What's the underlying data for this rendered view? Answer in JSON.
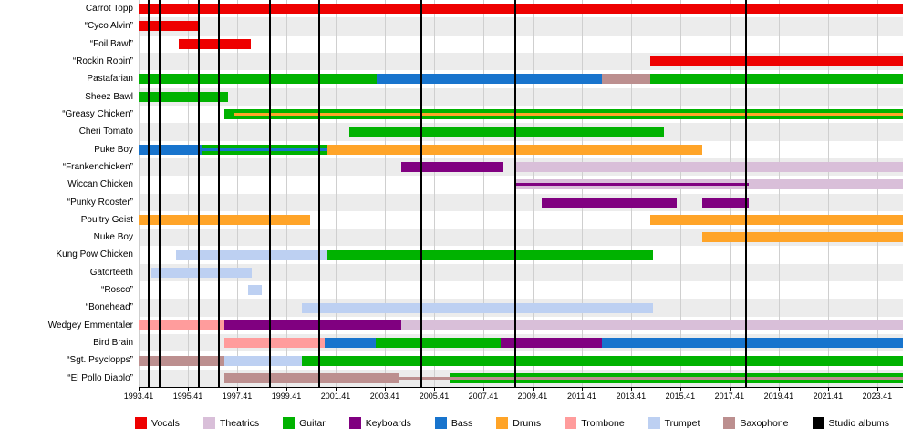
{
  "chart_data": {
    "type": "timeline",
    "title": "",
    "x_axis": {
      "domain": [
        1993.41,
        2024.45
      ],
      "ticks": [
        "1993.41",
        "1995.41",
        "1997.41",
        "1999.41",
        "2001.41",
        "2003.41",
        "2005.41",
        "2007.41",
        "2009.41",
        "2011.41",
        "2013.41",
        "2015.41",
        "2017.41",
        "2019.41",
        "2021.41",
        "2023.41"
      ]
    },
    "albums": {
      "label": "Studio albums",
      "years": [
        1993.82,
        1994.26,
        1995.85,
        1996.67,
        1998.74,
        2000.74,
        2004.89,
        2008.7,
        2018.07
      ]
    },
    "colors": {
      "vocals": "#EE0000",
      "theatrics": "#D9BFD9",
      "guitar": "#00B200",
      "keyboards": "#800080",
      "bass": "#1874CD",
      "drums": "#FFA428",
      "trombone": "#FF9C9C",
      "trumpet": "#BDD0F2",
      "saxophone": "#BC8F8F",
      "studio_albums": "#000000"
    },
    "legend": [
      {
        "label": "Vocals",
        "key": "vocals"
      },
      {
        "label": "Theatrics",
        "key": "theatrics"
      },
      {
        "label": "Guitar",
        "key": "guitar"
      },
      {
        "label": "Keyboards",
        "key": "keyboards"
      },
      {
        "label": "Bass",
        "key": "bass"
      },
      {
        "label": "Drums",
        "key": "drums"
      },
      {
        "label": "Trombone",
        "key": "trombone"
      },
      {
        "label": "Trumpet",
        "key": "trumpet"
      },
      {
        "label": "Saxophone",
        "key": "saxophone"
      },
      {
        "label": "Studio albums",
        "key": "studio_albums"
      }
    ],
    "members": [
      {
        "name": "Carrot Topp",
        "segments": [
          {
            "start": 1993.41,
            "end": 2024.45,
            "role": "vocals"
          }
        ]
      },
      {
        "name": "“Cyco Alvin”",
        "segments": [
          {
            "start": 1993.41,
            "end": 1995.85,
            "role": "vocals"
          }
        ]
      },
      {
        "name": "“Foil Bawl”",
        "segments": [
          {
            "start": 1995.04,
            "end": 1997.97,
            "role": "vocals"
          }
        ]
      },
      {
        "name": "“Rockin Robin”",
        "segments": [
          {
            "start": 2014.19,
            "end": 2024.45,
            "role": "vocals"
          }
        ]
      },
      {
        "name": "Pastafarian",
        "segments": [
          {
            "start": 1993.41,
            "end": 2003.08,
            "role": "guitar"
          },
          {
            "start": 2003.08,
            "end": 2012.22,
            "role": "bass"
          },
          {
            "start": 2012.22,
            "end": 2014.19,
            "role": "saxophone"
          },
          {
            "start": 2014.19,
            "end": 2024.45,
            "role": "guitar"
          }
        ]
      },
      {
        "name": "Sheez Bawl",
        "segments": [
          {
            "start": 1993.41,
            "end": 1997.04,
            "role": "guitar"
          }
        ]
      },
      {
        "name": "“Greasy Chicken”",
        "segments": [
          {
            "start": 1996.89,
            "end": 2024.45,
            "role": "guitar"
          },
          {
            "start": 1997.3,
            "end": 2024.45,
            "role": "drums",
            "thin": true
          }
        ]
      },
      {
        "name": "Cheri Tomato",
        "segments": [
          {
            "start": 2001.97,
            "end": 2014.74,
            "role": "guitar"
          }
        ]
      },
      {
        "name": "Puke Boy",
        "segments": [
          {
            "start": 1993.41,
            "end": 1996.0,
            "role": "bass"
          },
          {
            "start": 1996.0,
            "end": 2001.07,
            "role": "guitar"
          },
          {
            "start": 2001.07,
            "end": 2016.3,
            "role": "drums"
          },
          {
            "start": 1996.0,
            "end": 2001.07,
            "role": "bass",
            "thin": true
          }
        ]
      },
      {
        "name": "“Frankenchicken”",
        "segments": [
          {
            "start": 2004.08,
            "end": 2008.19,
            "role": "keyboards"
          },
          {
            "start": 2008.7,
            "end": 2024.45,
            "role": "theatrics"
          }
        ]
      },
      {
        "name": "Wiccan Chicken",
        "segments": [
          {
            "start": 2008.7,
            "end": 2024.45,
            "role": "theatrics"
          },
          {
            "start": 2008.7,
            "end": 2018.2,
            "role": "keyboards",
            "thin": true
          }
        ]
      },
      {
        "name": "“Punky Rooster”",
        "segments": [
          {
            "start": 2009.78,
            "end": 2015.26,
            "role": "keyboards"
          },
          {
            "start": 2016.3,
            "end": 2018.2,
            "role": "keyboards"
          }
        ]
      },
      {
        "name": "Poultry Geist",
        "segments": [
          {
            "start": 1993.41,
            "end": 2000.37,
            "role": "drums"
          },
          {
            "start": 2014.19,
            "end": 2024.45,
            "role": "drums"
          }
        ]
      },
      {
        "name": "Nuke Boy",
        "segments": [
          {
            "start": 2016.3,
            "end": 2024.45,
            "role": "drums"
          }
        ]
      },
      {
        "name": "Kung Pow Chicken",
        "segments": [
          {
            "start": 1994.93,
            "end": 2001.07,
            "role": "trumpet"
          },
          {
            "start": 2001.07,
            "end": 2014.3,
            "role": "guitar"
          }
        ]
      },
      {
        "name": "Gatorteeth",
        "segments": [
          {
            "start": 1993.93,
            "end": 1998.0,
            "role": "trumpet"
          }
        ]
      },
      {
        "name": "“Rosco”",
        "segments": [
          {
            "start": 1997.85,
            "end": 1998.41,
            "role": "trumpet"
          }
        ]
      },
      {
        "name": "“Bonehead”",
        "segments": [
          {
            "start": 2000.04,
            "end": 2014.3,
            "role": "trumpet"
          }
        ]
      },
      {
        "name": "Wedgey Emmentaler",
        "segments": [
          {
            "start": 1993.41,
            "end": 1996.89,
            "role": "trombone"
          },
          {
            "start": 1996.89,
            "end": 2004.08,
            "role": "keyboards"
          },
          {
            "start": 2004.08,
            "end": 2024.45,
            "role": "theatrics"
          }
        ]
      },
      {
        "name": "Bird Brain",
        "segments": [
          {
            "start": 1996.89,
            "end": 2000.96,
            "role": "trombone"
          },
          {
            "start": 2000.96,
            "end": 2003.04,
            "role": "bass"
          },
          {
            "start": 2003.04,
            "end": 2008.11,
            "role": "guitar"
          },
          {
            "start": 2008.11,
            "end": 2012.22,
            "role": "keyboards"
          },
          {
            "start": 2012.22,
            "end": 2024.45,
            "role": "bass"
          }
        ]
      },
      {
        "name": "“Sgt. Psyclopps”",
        "segments": [
          {
            "start": 1993.41,
            "end": 1996.89,
            "role": "saxophone"
          },
          {
            "start": 1996.89,
            "end": 2000.04,
            "role": "trumpet"
          },
          {
            "start": 2000.04,
            "end": 2024.45,
            "role": "guitar"
          }
        ]
      },
      {
        "name": "“El Pollo Diablo”",
        "segments": [
          {
            "start": 1996.89,
            "end": 2004.0,
            "role": "saxophone"
          },
          {
            "start": 2006.04,
            "end": 2024.45,
            "role": "guitar"
          },
          {
            "start": 2004.0,
            "end": 2024.45,
            "role": "saxophone",
            "thin": true
          }
        ]
      }
    ]
  }
}
